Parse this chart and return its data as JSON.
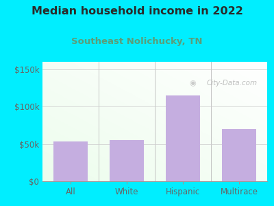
{
  "title": "Median household income in 2022",
  "subtitle": "Southeast Nolichucky, TN",
  "categories": [
    "All",
    "White",
    "Hispanic",
    "Multirace"
  ],
  "values": [
    53000,
    55000,
    115000,
    70000
  ],
  "bar_color": "#c5aee0",
  "title_fontsize": 11.5,
  "subtitle_fontsize": 9.5,
  "subtitle_color": "#5a9e7a",
  "title_color": "#2a2a2a",
  "outer_bg": "#00eeff",
  "yticks": [
    0,
    50000,
    100000,
    150000
  ],
  "ytick_labels": [
    "$0",
    "$50k",
    "$100k",
    "$150k"
  ],
  "ylim": [
    0,
    160000
  ],
  "watermark": "City-Data.com",
  "tick_color": "#666666",
  "axis_label_fontsize": 8.5,
  "divider_color": "#bbbbbb"
}
